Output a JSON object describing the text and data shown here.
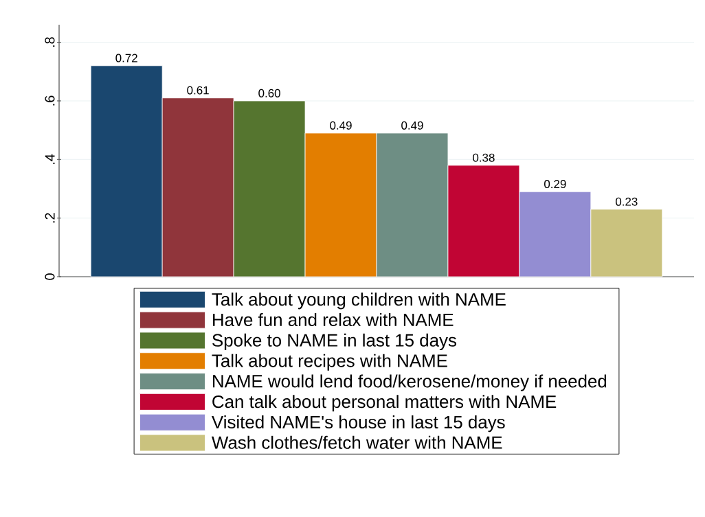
{
  "chart_data": {
    "type": "bar",
    "categories": [
      null
    ],
    "series": [
      {
        "name": "Talk about young children with NAME",
        "color": "#1a476f",
        "values": [
          0.72
        ],
        "value_labels": [
          "0.72"
        ]
      },
      {
        "name": "Have fun and relax with NAME",
        "color": "#90353b",
        "values": [
          0.61
        ],
        "value_labels": [
          "0.61"
        ]
      },
      {
        "name": "Spoke to NAME in last 15 days",
        "color": "#55752f",
        "values": [
          0.6
        ],
        "value_labels": [
          "0.60"
        ]
      },
      {
        "name": "Talk about recipes with NAME",
        "color": "#e37e00",
        "values": [
          0.49
        ],
        "value_labels": [
          "0.49"
        ]
      },
      {
        "name": "NAME would lend food/kerosene/money if needed",
        "color": "#6e8e84",
        "values": [
          0.49
        ],
        "value_labels": [
          "0.49"
        ]
      },
      {
        "name": "Can talk about personal matters with NAME",
        "color": "#c10534",
        "values": [
          0.38
        ],
        "value_labels": [
          "0.38"
        ]
      },
      {
        "name": "Visited NAME's house in last 15 days",
        "color": "#938dd2",
        "values": [
          0.29
        ],
        "value_labels": [
          "0.29"
        ]
      },
      {
        "name": "Wash clothes/fetch water with NAME",
        "color": "#cac27e",
        "values": [
          0.23
        ],
        "value_labels": [
          "0.23"
        ]
      }
    ],
    "ylim": [
      0,
      0.86
    ],
    "yticks": [
      0,
      {
        "value": 0.2,
        "label": ".2"
      },
      {
        "value": 0.4,
        "label": ".4"
      },
      {
        "value": 0.6,
        "label": ".6"
      },
      {
        "value": 0.8,
        "label": ".8"
      }
    ],
    "grid": "y",
    "legend": "bottom"
  }
}
